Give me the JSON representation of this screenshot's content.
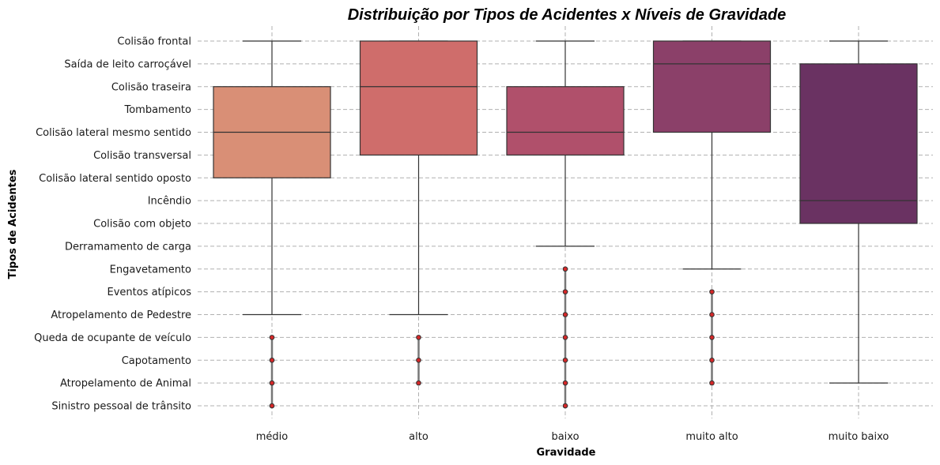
{
  "chart_data": {
    "type": "boxplot",
    "title": "Distribuição por Tipos de Acidentes x Níveis de Gravidade",
    "xlabel": "Gravidade",
    "ylabel": "Tipos de Acidentes",
    "grid": true,
    "orientation": "vertical",
    "x_categories": [
      "médio",
      "alto",
      "baixo",
      "muito alto",
      "muito baixo"
    ],
    "y_categories": [
      "Colisão frontal",
      "Saída de leito carroçável",
      "Colisão traseira",
      "Tombamento",
      "Colisão lateral mesmo sentido",
      "Colisão transversal",
      "Colisão lateral sentido oposto",
      "Incêndio",
      "Colisão com objeto",
      "Derramamento de carga",
      "Engavetamento",
      "Eventos atípicos",
      "Atropelamento de Pedestre",
      "Queda de ocupante de veículo",
      "Capotamento",
      "Atropelamento de Animal",
      "Sinistro pessoal de trânsito"
    ],
    "series": [
      {
        "category": "médio",
        "color": "#d98f76",
        "whisker_low": "Colisão frontal",
        "q1": "Colisão traseira",
        "median": "Colisão lateral mesmo sentido",
        "q3": "Colisão lateral sentido oposto",
        "whisker_high": "Atropelamento de Pedestre",
        "outliers": [
          "Queda de ocupante de veículo",
          "Capotamento",
          "Atropelamento de Animal",
          "Sinistro pessoal de trânsito"
        ]
      },
      {
        "category": "alto",
        "color": "#cf6d6b",
        "whisker_low": "Colisão frontal",
        "q1": "Colisão frontal",
        "median": "Colisão traseira",
        "q3": "Colisão transversal",
        "whisker_high": "Atropelamento de Pedestre",
        "outliers": [
          "Queda de ocupante de veículo",
          "Capotamento",
          "Atropelamento de Animal"
        ]
      },
      {
        "category": "baixo",
        "color": "#b0506b",
        "whisker_low": "Colisão frontal",
        "q1": "Colisão traseira",
        "median": "Colisão lateral mesmo sentido",
        "q3": "Colisão transversal",
        "whisker_high": "Derramamento de carga",
        "outliers": [
          "Engavetamento",
          "Eventos atípicos",
          "Atropelamento de Pedestre",
          "Queda de ocupante de veículo",
          "Capotamento",
          "Atropelamento de Animal",
          "Sinistro pessoal de trânsito"
        ]
      },
      {
        "category": "muito alto",
        "color": "#8b4069",
        "whisker_low": "Colisão frontal",
        "q1": "Colisão frontal",
        "median": "Saída de leito carroçável",
        "q3": "Colisão lateral mesmo sentido",
        "whisker_high": "Engavetamento",
        "outliers": [
          "Eventos atípicos",
          "Atropelamento de Pedestre",
          "Queda de ocupante de veículo",
          "Capotamento",
          "Atropelamento de Animal"
        ]
      },
      {
        "category": "muito baixo",
        "color": "#6a3262",
        "whisker_low": "Colisão frontal",
        "q1": "Saída de leito carroçável",
        "median": "Incêndio",
        "q3": "Colisão com objeto",
        "whisker_high": "Atropelamento de Animal",
        "outliers": []
      }
    ]
  }
}
